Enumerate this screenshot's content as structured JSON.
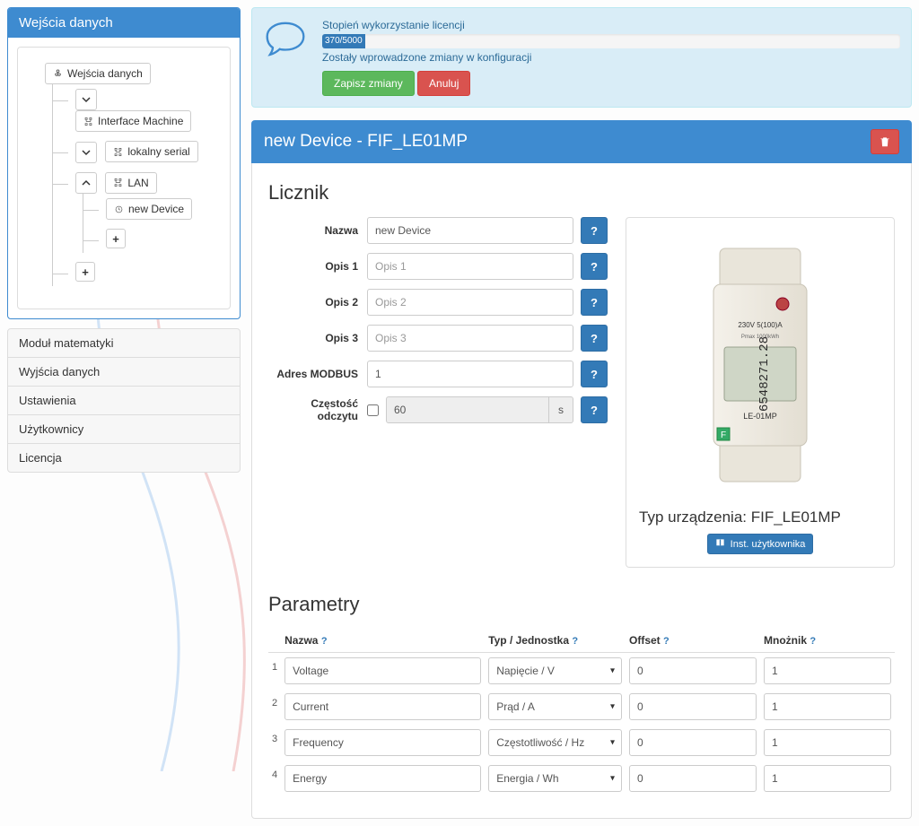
{
  "colors": {
    "primary": "#3e8bd0",
    "btn_primary": "#337ab7",
    "success": "#5cb85c",
    "danger": "#d9534f",
    "info_bg": "#d9edf7",
    "info_border": "#bce8f1",
    "info_text": "#31708f"
  },
  "sidebar": {
    "panel_title": "Wejścia danych",
    "tree": {
      "root": "Wejścia danych",
      "interface_machine": "Interface Machine",
      "lokalny_serial": "lokalny serial",
      "lan": "LAN",
      "new_device": "new Device"
    },
    "links": [
      "Moduł matematyki",
      "Wyjścia danych",
      "Ustawienia",
      "Użytkownicy",
      "Licencja"
    ]
  },
  "license": {
    "title": "Stopień wykorzystanie licencji",
    "usage_label": "370/5000",
    "usage_percent": 7.4,
    "config_note": "Zostały wprowadzone zmiany w konfiguracji",
    "save_btn": "Zapisz zmiany",
    "cancel_btn": "Anuluj"
  },
  "device": {
    "heading": "new Device - FIF_LE01MP",
    "section_counter": "Licznik",
    "labels": {
      "nazwa": "Nazwa",
      "opis1": "Opis 1",
      "opis2": "Opis 2",
      "opis3": "Opis 3",
      "modbus": "Adres MODBUS",
      "freq": "Częstość odczytu"
    },
    "values": {
      "nazwa": "new Device",
      "opis1": "",
      "opis2": "",
      "opis3": "",
      "modbus": "1",
      "freq": "60",
      "freq_unit": "s"
    },
    "placeholders": {
      "opis1": "Opis 1",
      "opis2": "Opis 2",
      "opis3": "Opis 3"
    },
    "device_type_label": "Typ urządzenia: FIF_LE01MP",
    "device_display": "6548271.28",
    "manual_btn": "Inst. użytkownika"
  },
  "parameters": {
    "section_title": "Parametry",
    "headers": {
      "nazwa": "Nazwa",
      "typ": "Typ / Jednostka",
      "offset": "Offset",
      "mnoznik": "Mnożnik"
    },
    "rows": [
      {
        "idx": "1",
        "nazwa": "Voltage",
        "typ": "Napięcie / V",
        "offset": "0",
        "mnoznik": "1"
      },
      {
        "idx": "2",
        "nazwa": "Current",
        "typ": "Prąd / A",
        "offset": "0",
        "mnoznik": "1"
      },
      {
        "idx": "3",
        "nazwa": "Frequency",
        "typ": "Częstotliwość / Hz",
        "offset": "0",
        "mnoznik": "1"
      },
      {
        "idx": "4",
        "nazwa": "Energy",
        "typ": "Energia / Wh",
        "offset": "0",
        "mnoznik": "1"
      }
    ]
  }
}
